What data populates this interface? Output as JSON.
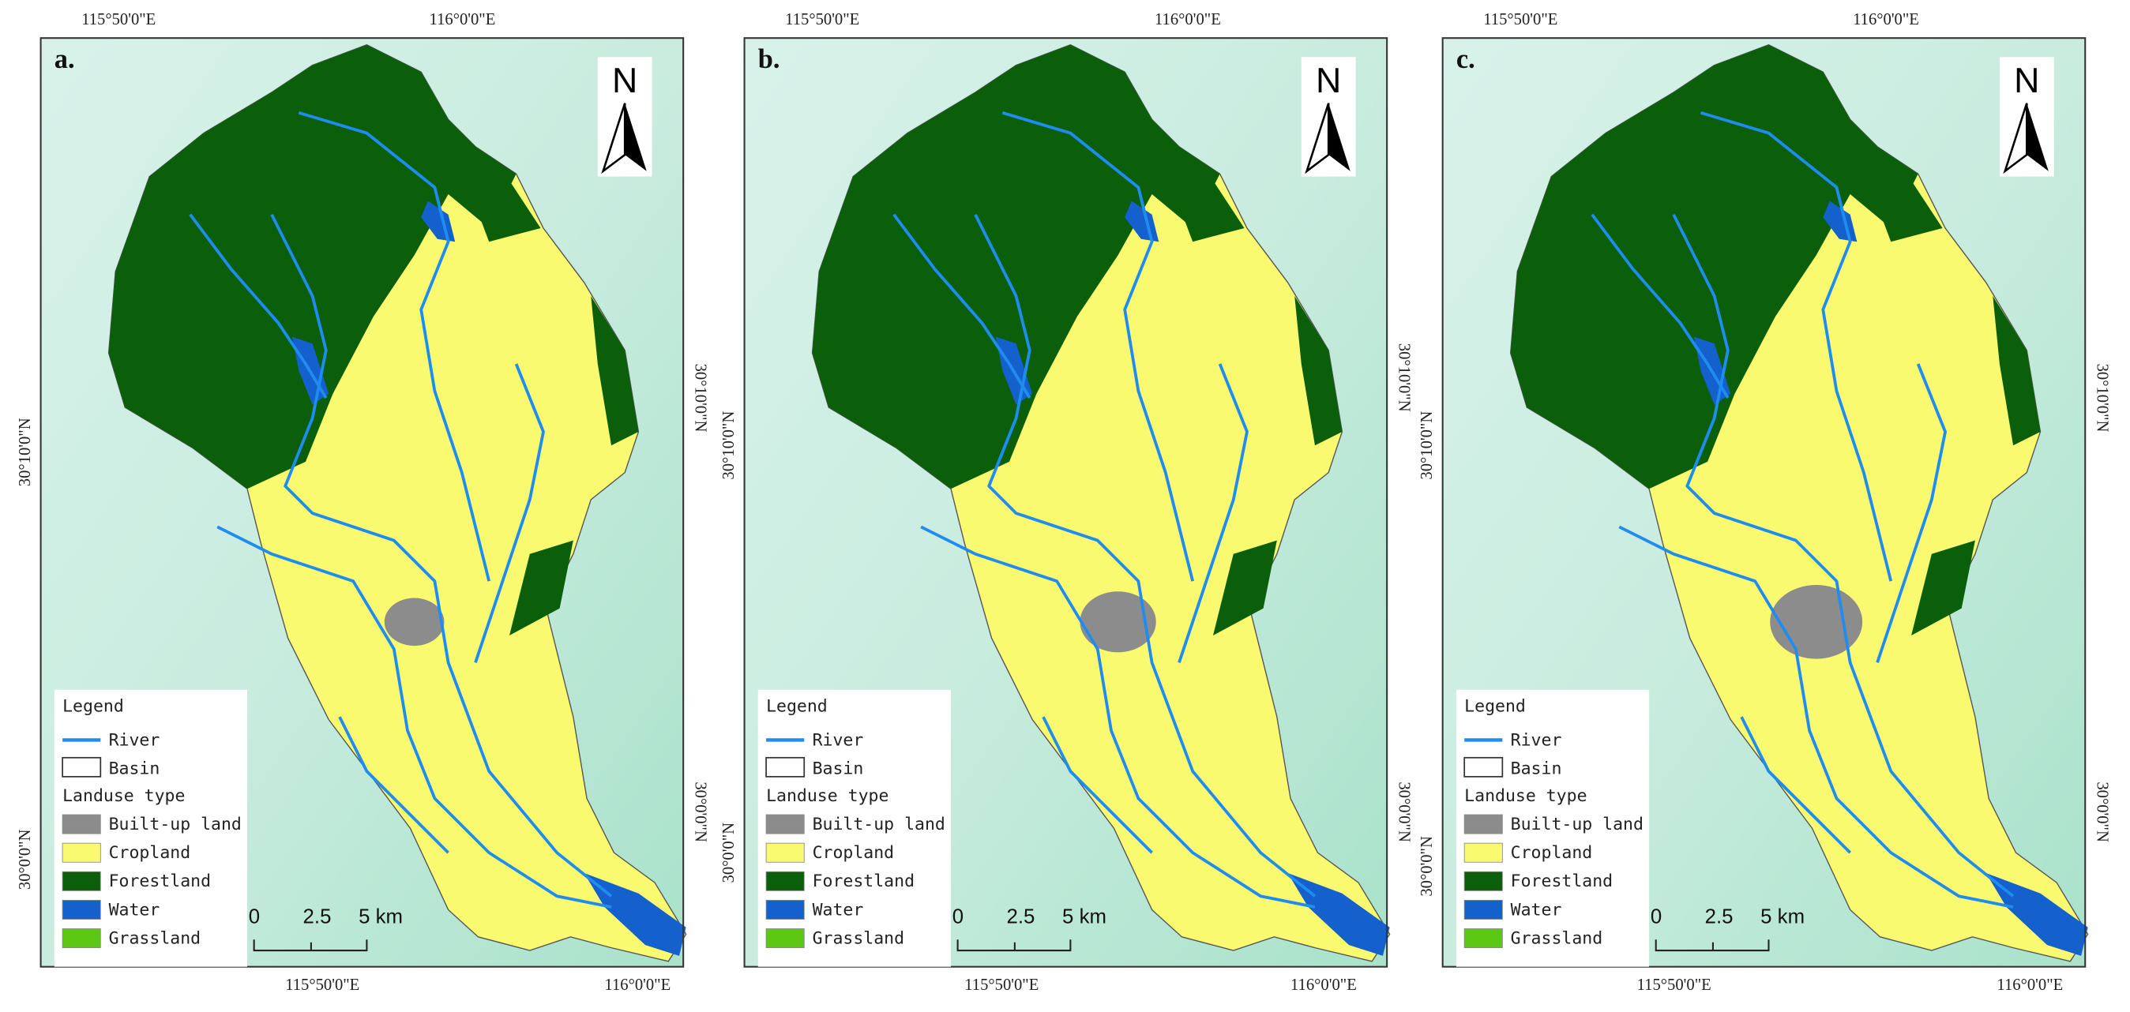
{
  "panels": [
    {
      "label": "a.",
      "top_labels": [
        "115°50'0\"E",
        "116°0'0\"E"
      ],
      "bottom_labels": [
        "115°50'0\"E",
        "116°0'0\"E"
      ],
      "left_labels": [
        "30°10'0\"N",
        "30°0'0\"N"
      ],
      "right_labels": [
        "30°10'0\"N",
        "30°0'0\"N"
      ]
    },
    {
      "label": "b.",
      "top_labels": [
        "115°50'0\"E",
        "116°0'0\"E"
      ],
      "bottom_labels": [
        "115°50'0\"E",
        "116°0'0\"E"
      ],
      "left_labels": [
        "30°10'0\"N",
        "30°0'0\"N"
      ],
      "right_labels": [
        "30°10'0\"N",
        "30°0'0\"N"
      ]
    },
    {
      "label": "c.",
      "top_labels": [
        "115°50'0\"E",
        "116°0'0\"E"
      ],
      "bottom_labels": [
        "115°50'0\"E",
        "116°0'0\"E"
      ],
      "left_labels": [
        "30°10'0\"N",
        "30°0'0\"N"
      ],
      "right_labels": [
        "30°10'0\"N",
        "30°0'0\"N"
      ]
    }
  ],
  "north": "N",
  "legend": {
    "title": "Legend",
    "river": {
      "label": "River",
      "color": "#1e8cf0"
    },
    "basin": {
      "label": "Basin"
    },
    "landuse_title": "Landuse type",
    "classes": [
      {
        "label": "Built-up land",
        "color": "#8c8c8c"
      },
      {
        "label": "Cropland",
        "color": "#fafa70"
      },
      {
        "label": "Forestland",
        "color": "#0b5f0b"
      },
      {
        "label": "Water",
        "color": "#1460cc"
      },
      {
        "label": "Grassland",
        "color": "#5cc814"
      }
    ]
  },
  "scale_bar": [
    "0",
    "2.5",
    "5 km"
  ]
}
